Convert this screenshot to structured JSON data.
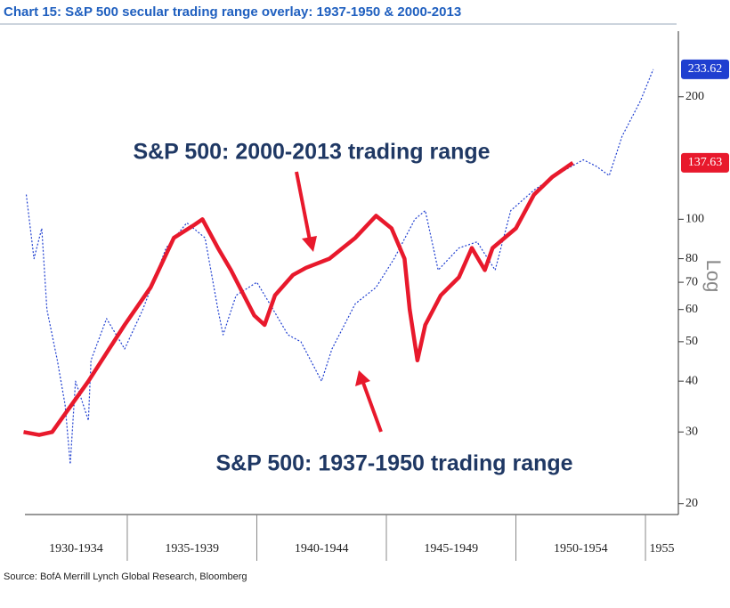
{
  "chart_data": {
    "type": "line",
    "title": "Chart 15: S&P 500 secular trading range overlay: 1937-1950 & 2000-2013",
    "source": "Source: BofA Merrill Lynch Global Research, Bloomberg",
    "y_axis_label": "Log",
    "log_scale": true,
    "grid": false,
    "xlim": [
      1931.05,
      1956.27
    ],
    "xticks": [
      1935,
      1940,
      1945,
      1950,
      1955
    ],
    "x_period_labels": [
      "1930-1934",
      "1935-1939",
      "1940-1944",
      "1945-1949",
      "1950-1954",
      "1955"
    ],
    "ylim": [
      18.8,
      290
    ],
    "yticks": [
      20,
      30,
      40,
      50,
      60,
      70,
      80,
      100,
      200
    ],
    "series": [
      {
        "name": "S&P 500: 2000-2013 trading range",
        "color": "#e8192c",
        "style": "solid",
        "x": [
          1931.0,
          1931.6,
          1932.1,
          1933.5,
          1934.9,
          1935.9,
          1936.8,
          1937.6,
          1937.9,
          1938.5,
          1939.0,
          1939.9,
          1940.3,
          1940.7,
          1941.4,
          1941.9,
          1942.8,
          1943.8,
          1944.6,
          1945.2,
          1945.7,
          1945.9,
          1946.2,
          1946.5,
          1947.1,
          1947.8,
          1948.3,
          1948.8,
          1949.1,
          1950.0,
          1950.7,
          1951.4,
          1952.2
        ],
        "values": [
          30,
          29.5,
          30,
          40,
          55,
          68,
          90,
          97,
          100,
          85,
          75,
          58,
          55,
          65,
          73,
          76,
          80,
          90,
          102,
          95,
          80,
          60,
          45,
          55,
          65,
          72,
          85,
          75,
          85,
          95,
          115,
          127,
          137.63
        ]
      },
      {
        "name": "S&P 500: 1937-1950 trading range",
        "color": "#1f3fd0",
        "style": "dotted",
        "x": [
          1931.1,
          1931.4,
          1931.7,
          1931.9,
          1932.3,
          1932.6,
          1932.8,
          1933.0,
          1933.3,
          1933.5,
          1933.6,
          1934.2,
          1934.9,
          1935.6,
          1936.5,
          1937.3,
          1938.0,
          1938.5,
          1938.7,
          1939.2,
          1940.0,
          1940.5,
          1941.2,
          1941.7,
          1942.5,
          1942.9,
          1943.8,
          1944.6,
          1945.3,
          1946.1,
          1946.5,
          1947.0,
          1947.8,
          1948.5,
          1949.2,
          1949.8,
          1950.7,
          1951.7,
          1952.6,
          1953.1,
          1953.6,
          1954.1,
          1954.8,
          1955.3
        ],
        "values": [
          115,
          80,
          95,
          60,
          45,
          35,
          25,
          40,
          35,
          32,
          45,
          57,
          48,
          60,
          85,
          98,
          90,
          60,
          52,
          65,
          70,
          62,
          52,
          50,
          40,
          48,
          62,
          68,
          80,
          100,
          105,
          75,
          85,
          88,
          75,
          105,
          118,
          130,
          140,
          135,
          128,
          160,
          195,
          233.62
        ]
      }
    ]
  }
}
